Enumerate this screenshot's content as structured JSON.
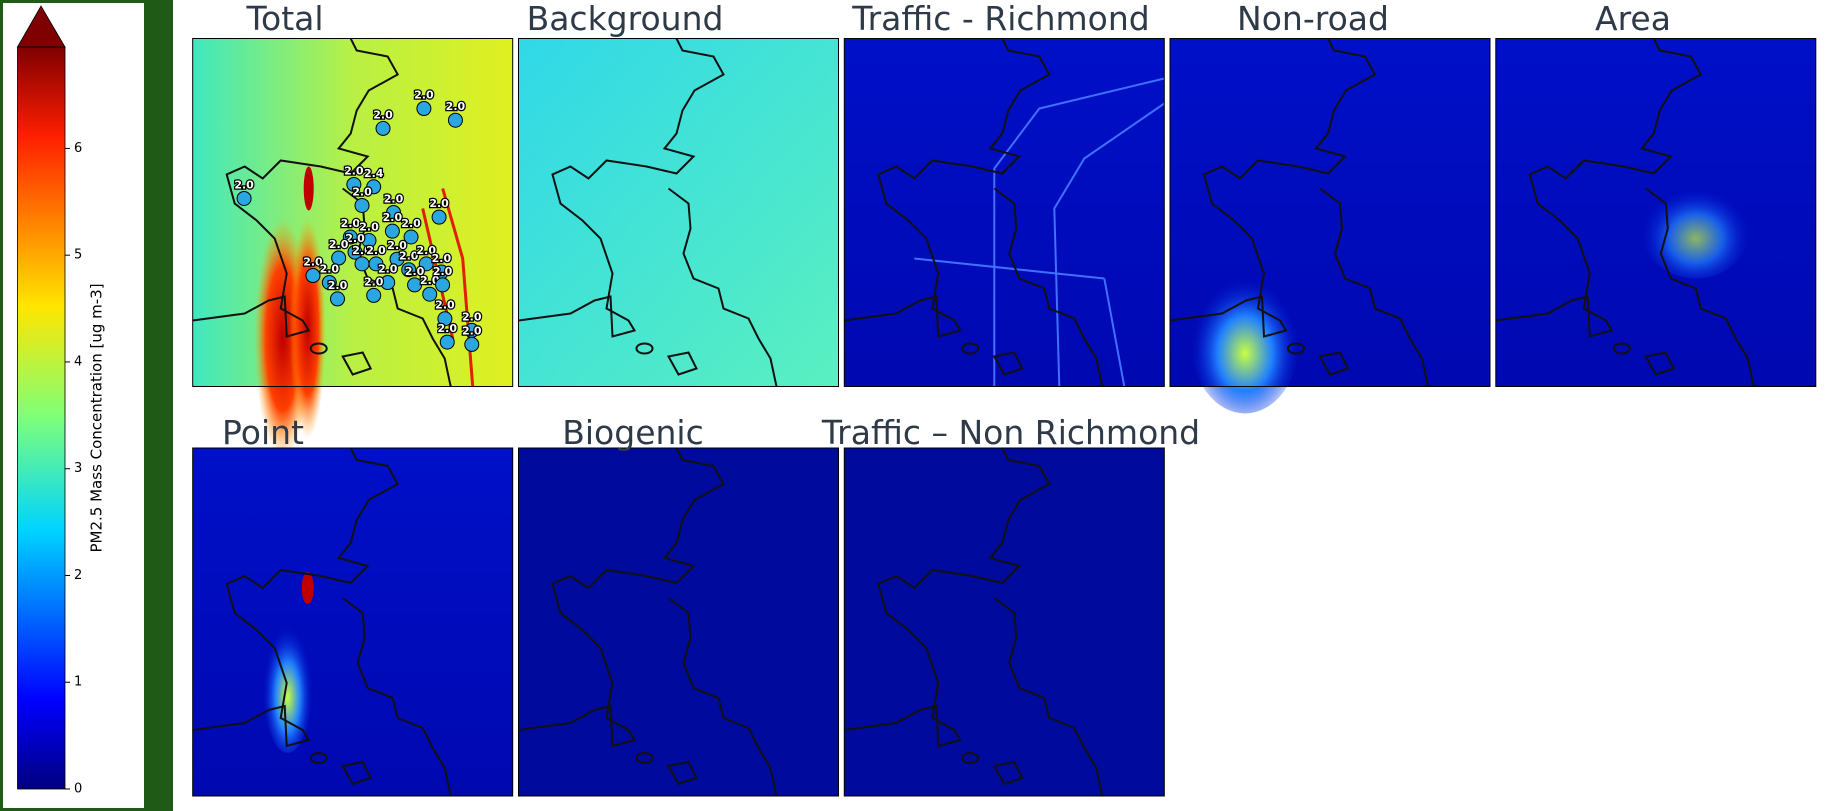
{
  "colorbar": {
    "label": "PM2.5 Mass Concentration [ug m-3]",
    "lim": [
      0,
      6.95
    ],
    "ticks": [
      0,
      1,
      2,
      3,
      4,
      5,
      6
    ]
  },
  "panels": [
    {
      "title": "Total"
    },
    {
      "title": "Background"
    },
    {
      "title": "Traffic - Richmond"
    },
    {
      "title": "Non-road"
    },
    {
      "title": "Area"
    },
    {
      "title": "Point"
    },
    {
      "title": "Biogenic"
    },
    {
      "title": "Traffic – Non Richmond"
    }
  ],
  "stations": [
    {
      "label": "2.0"
    },
    {
      "label": "2.0"
    },
    {
      "label": "2.0"
    },
    {
      "label": "2.0"
    },
    {
      "label": "2.0"
    },
    {
      "label": "2.4"
    },
    {
      "label": "2.0"
    },
    {
      "label": "2.0"
    },
    {
      "label": "2.0"
    },
    {
      "label": "2.0"
    },
    {
      "label": "2.0"
    },
    {
      "label": "2.0"
    },
    {
      "label": "2.0"
    },
    {
      "label": "2.0"
    },
    {
      "label": "2.0"
    },
    {
      "label": "2.0"
    },
    {
      "label": "2.0"
    },
    {
      "label": "2.0"
    },
    {
      "label": "2.0"
    },
    {
      "label": "2.0"
    },
    {
      "label": "2.0"
    },
    {
      "label": "2.0"
    },
    {
      "label": "2.0"
    },
    {
      "label": "2.0"
    },
    {
      "label": "2.0"
    },
    {
      "label": "2.0"
    },
    {
      "label": "2.0"
    },
    {
      "label": "2.0"
    },
    {
      "label": "2.0"
    },
    {
      "label": "2.0"
    },
    {
      "label": "2.0"
    },
    {
      "label": "2.0"
    },
    {
      "label": "2.0"
    }
  ]
}
